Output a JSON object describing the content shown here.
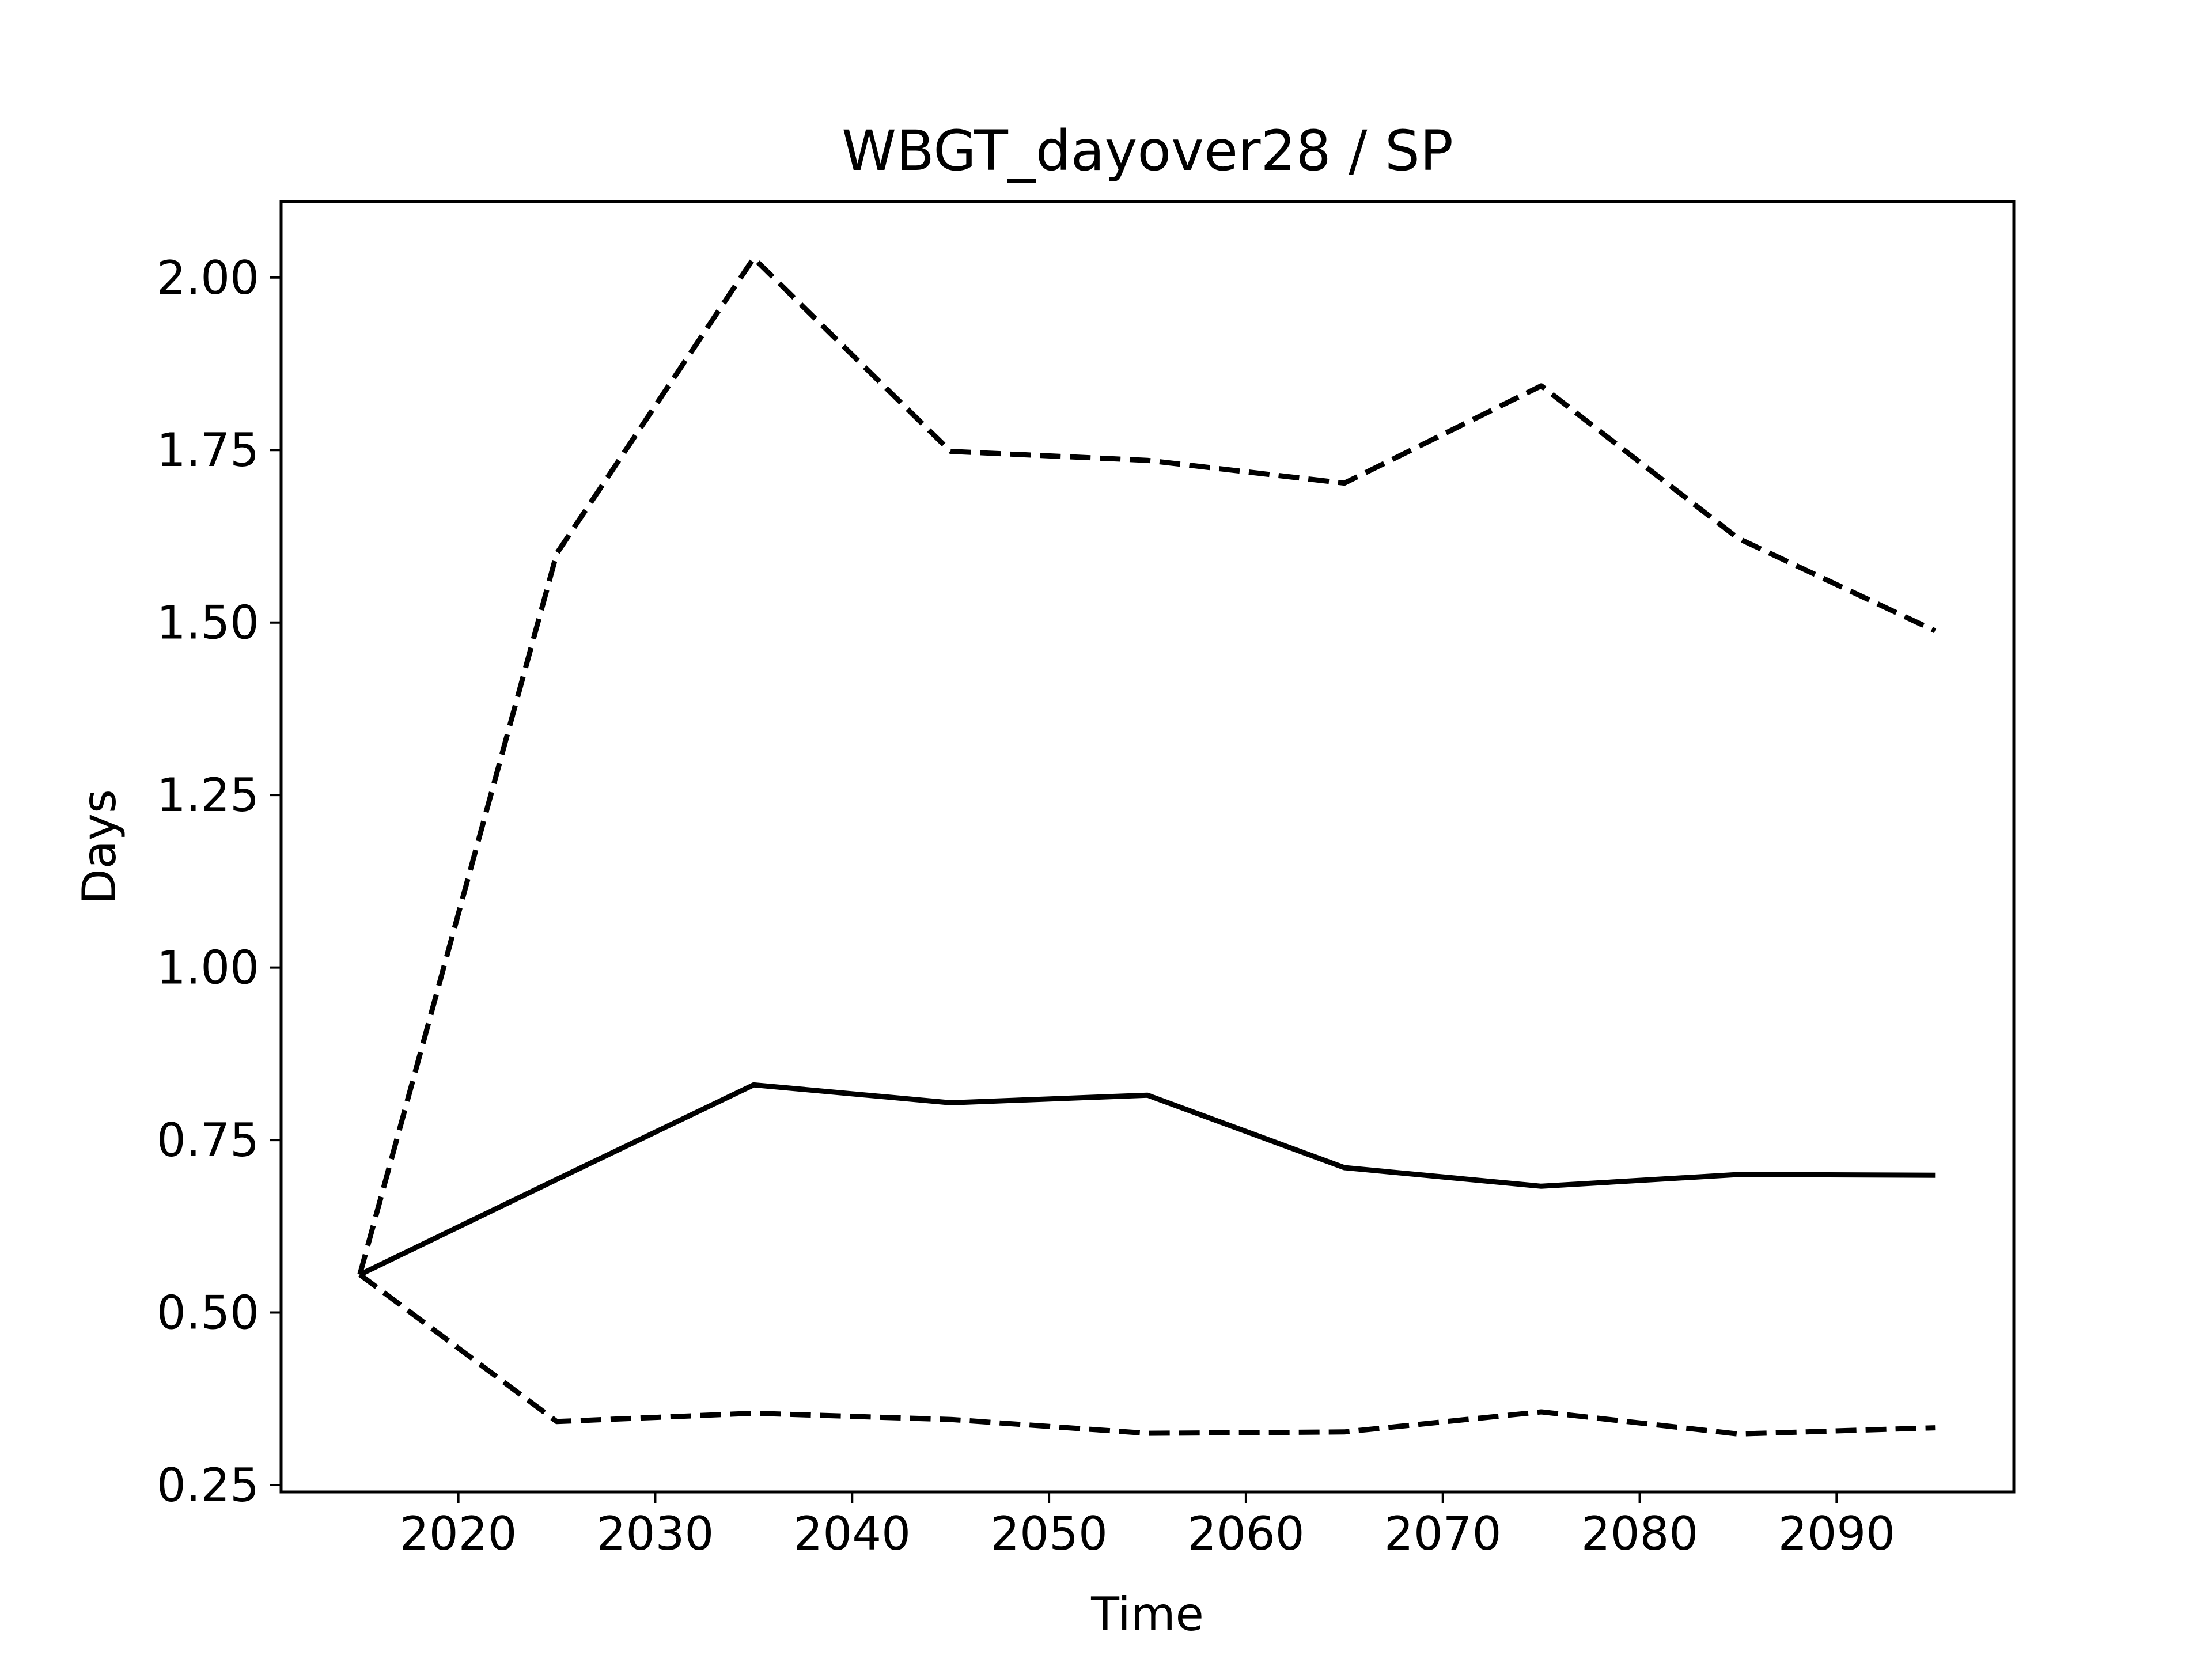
{
  "chart_data": {
    "type": "line",
    "title": "WBGT_dayover28 / SP",
    "xlabel": "Time",
    "ylabel": "Days",
    "xlim": [
      2011,
      2099
    ],
    "ylim": [
      0.24,
      2.11
    ],
    "xticks": [
      2020,
      2030,
      2040,
      2050,
      2060,
      2070,
      2080,
      2090
    ],
    "xtick_labels": [
      "2020",
      "2030",
      "2040",
      "2050",
      "2060",
      "2070",
      "2080",
      "2090"
    ],
    "yticks": [
      0.25,
      0.5,
      0.75,
      1.0,
      1.25,
      1.5,
      1.75,
      2.0
    ],
    "ytick_labels": [
      "0.25",
      "0.50",
      "0.75",
      "1.00",
      "1.25",
      "1.50",
      "1.75",
      "2.00"
    ],
    "grid": false,
    "x": [
      2015,
      2025,
      2035,
      2045,
      2055,
      2065,
      2075,
      2085,
      2095
    ],
    "series": [
      {
        "style": "solid",
        "color": "#000000",
        "values": [
          0.555,
          0.693,
          0.83,
          0.804,
          0.815,
          0.71,
          0.683,
          0.7,
          0.699
        ]
      },
      {
        "style": "dashed",
        "color": "#000000",
        "values": [
          0.555,
          1.6,
          2.028,
          1.748,
          1.735,
          1.702,
          1.843,
          1.622,
          1.488
        ]
      },
      {
        "style": "dashed",
        "color": "#000000",
        "values": [
          0.555,
          0.342,
          0.354,
          0.345,
          0.325,
          0.327,
          0.356,
          0.324,
          0.333
        ]
      }
    ]
  }
}
